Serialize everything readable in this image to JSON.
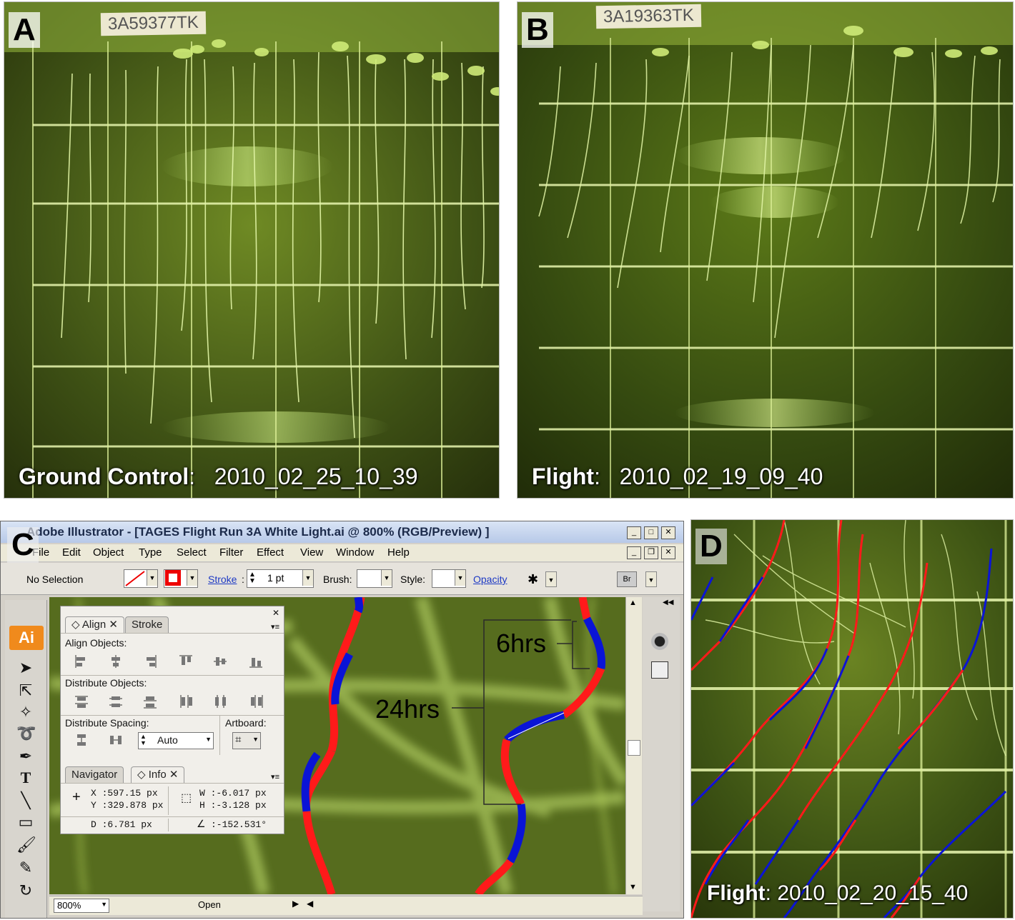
{
  "panels": {
    "a": {
      "letter": "A",
      "tag": "3A59377TK",
      "caption_label": "Ground Control",
      "caption_sep": ":",
      "caption_value": "2010_02_25_10_39"
    },
    "b": {
      "letter": "B",
      "tag": "3A19363TK",
      "caption_label": "Flight",
      "caption_sep": ":",
      "caption_value": "2010_02_19_09_40"
    },
    "c": {
      "letter": "C"
    },
    "d": {
      "letter": "D",
      "caption_label": "Flight",
      "caption_sep": ":",
      "caption_value": "2010_02_20_15_40"
    }
  },
  "illustrator": {
    "title": "Adobe Illustrator - [TAGES Flight Run 3A White Light.ai @ 800% (RGB/Preview) ]",
    "menu": [
      "File",
      "Edit",
      "Object",
      "Type",
      "Select",
      "Filter",
      "Effect",
      "View",
      "Window",
      "Help"
    ],
    "control": {
      "selection": "No Selection",
      "stroke_label": "Stroke",
      "stroke_value": "1 pt",
      "brush_label": "Brush:",
      "style_label": "Style:",
      "opacity_label": "Opacity"
    },
    "logo": "Ai",
    "palette": {
      "tabs": [
        "Align",
        "Stroke"
      ],
      "align_objects": "Align Objects:",
      "distribute_objects": "Distribute Objects:",
      "distribute_spacing": "Distribute Spacing:",
      "artboard": "Artboard:",
      "spacing_value": "Auto",
      "info_tabs": [
        "Navigator",
        "Info"
      ],
      "info": {
        "x": "X  :597.15 px",
        "y": "Y  :329.878 px",
        "w": "W  :-6.017 px",
        "h": "H  :-3.128 px",
        "d": "D  :6.781 px",
        "angle": ":-152.531°"
      }
    },
    "status": {
      "zoom": "800%",
      "state": "Open"
    },
    "annotations": {
      "six": "6hrs",
      "twentyfour": "24hrs"
    },
    "colors": {
      "segment_red": "#ff1a1a",
      "segment_blue": "#0a14d6",
      "canvas": "#566c1e"
    }
  }
}
